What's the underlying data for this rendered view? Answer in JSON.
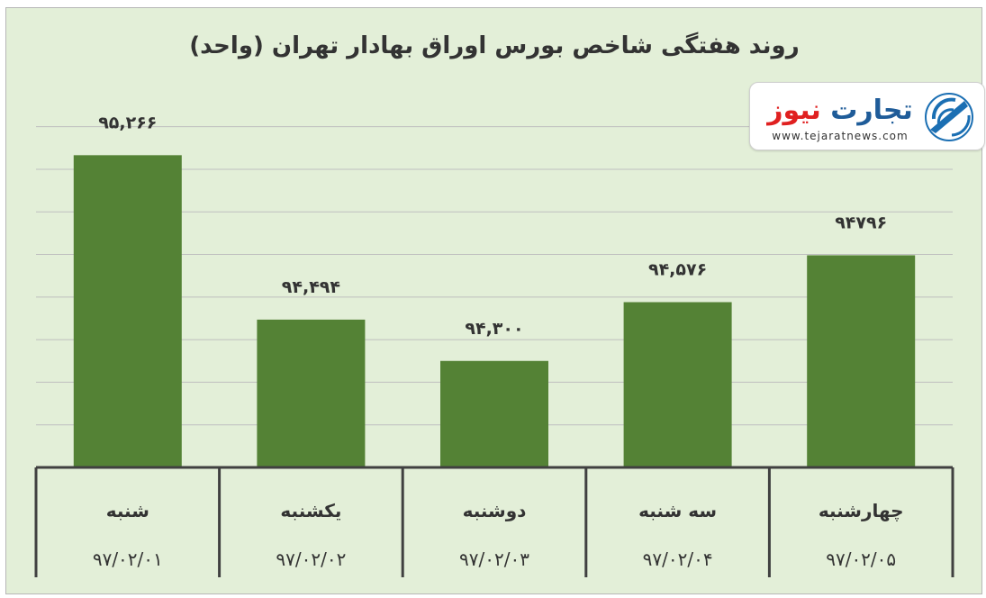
{
  "chart_data": {
    "type": "bar",
    "title": "روند هفتگی شاخص بورس اوراق بهادار تهران (واحد)",
    "categories": [
      "شنبه",
      "یکشنبه",
      "دوشنبه",
      "سه شنبه",
      "چهارشنبه"
    ],
    "dates": [
      "۹۷/۰۲/۰۱",
      "۹۷/۰۲/۰۲",
      "۹۷/۰۲/۰۳",
      "۹۷/۰۲/۰۴",
      "۹۷/۰۲/۰۵"
    ],
    "values": [
      95266,
      94494,
      94300,
      94576,
      94796
    ],
    "data_labels": [
      "۹۵,۲۶۶",
      "۹۴,۴۹۴",
      "۹۴,۳۰۰",
      "۹۴,۵۷۶",
      "۹۴۷۹۶"
    ],
    "ylim": [
      93800,
      95500
    ],
    "grid": true,
    "xlabel": "",
    "ylabel": "",
    "colors": {
      "bar": "#548235",
      "background": "#e3efd8",
      "grid": "#bfbfbf",
      "table_border": "#404040"
    }
  },
  "logo": {
    "name": "تجارت نیوز",
    "url": "www.tejaratnews.com",
    "icon": "tejarat-news-logo-icon"
  }
}
